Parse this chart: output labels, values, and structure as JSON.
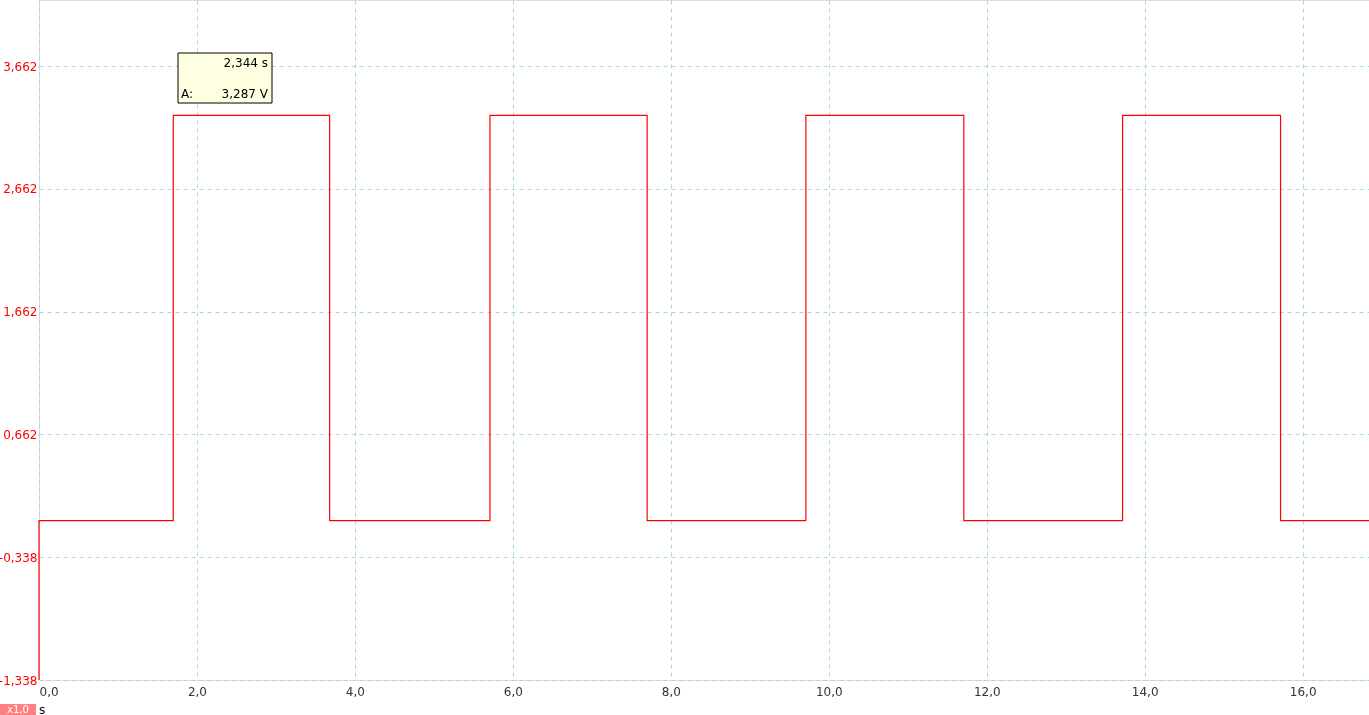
{
  "chart_data": {
    "type": "line",
    "xlabel": "s",
    "x": [
      0,
      0,
      1.7,
      1.7,
      3.68,
      3.68,
      5.71,
      5.71,
      7.7,
      7.7,
      9.71,
      9.71,
      11.71,
      11.71,
      13.72,
      13.72,
      15.72,
      15.72,
      16.84
    ],
    "series": [
      {
        "color": "#ff0000",
        "values": [
          -1.338,
          -0.04,
          -0.04,
          3.26,
          3.26,
          -0.04,
          -0.04,
          3.26,
          3.26,
          -0.04,
          -0.04,
          3.26,
          3.26,
          -0.04,
          -0.04,
          3.26,
          3.26,
          -0.04,
          -0.04
        ]
      }
    ],
    "xlim": [
      0,
      16.84
    ],
    "ylim": [
      -1.338,
      4.2
    ],
    "xticks": [
      {
        "value": 0,
        "label": "0,0"
      },
      {
        "value": 2,
        "label": "2,0"
      },
      {
        "value": 4,
        "label": "4,0"
      },
      {
        "value": 6,
        "label": "6,0"
      },
      {
        "value": 8,
        "label": "8,0"
      },
      {
        "value": 10,
        "label": "10,0"
      },
      {
        "value": 12,
        "label": "12,0"
      },
      {
        "value": 14,
        "label": "14,0"
      },
      {
        "value": 16,
        "label": "16,0"
      }
    ],
    "yticks": [
      {
        "value": -1.338,
        "label": "-1,338"
      },
      {
        "value": -0.338,
        "label": "-0,338"
      },
      {
        "value": 0.662,
        "label": "0,662"
      },
      {
        "value": 1.662,
        "label": "1,662"
      },
      {
        "value": 2.662,
        "label": "2,662"
      },
      {
        "value": 3.662,
        "label": "3,662"
      }
    ],
    "grid": true,
    "marker": "none",
    "line_style": "solid",
    "annotations": [
      "2,344 s",
      "A: 3,287 V",
      "x1,0"
    ]
  }
}
